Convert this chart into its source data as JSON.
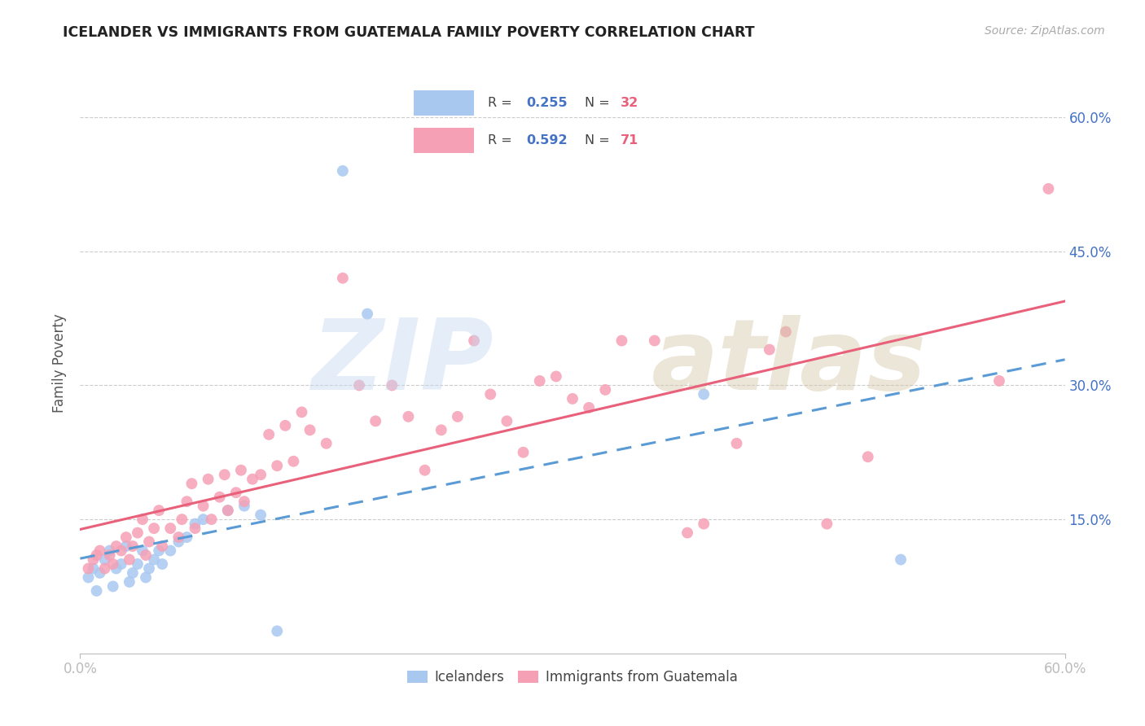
{
  "title": "ICELANDER VS IMMIGRANTS FROM GUATEMALA FAMILY POVERTY CORRELATION CHART",
  "source": "Source: ZipAtlas.com",
  "ylabel": "Family Poverty",
  "xlim": [
    0.0,
    0.6
  ],
  "ylim": [
    0.0,
    0.65
  ],
  "color_blue": "#a8c8f0",
  "color_pink": "#f5a0b5",
  "color_line_blue": "#5b9bd5",
  "color_line_pink": "#e8607a",
  "color_axis_label": "#4472c4",
  "icelanders_x": [
    0.005,
    0.008,
    0.01,
    0.012,
    0.015,
    0.018,
    0.02,
    0.022,
    0.025,
    0.028,
    0.03,
    0.032,
    0.035,
    0.038,
    0.04,
    0.042,
    0.045,
    0.048,
    0.05,
    0.055,
    0.06,
    0.065,
    0.07,
    0.075,
    0.09,
    0.1,
    0.11,
    0.12,
    0.16,
    0.175,
    0.38,
    0.5
  ],
  "icelanders_y": [
    0.085,
    0.095,
    0.07,
    0.09,
    0.105,
    0.115,
    0.075,
    0.095,
    0.1,
    0.12,
    0.08,
    0.09,
    0.1,
    0.115,
    0.085,
    0.095,
    0.105,
    0.115,
    0.1,
    0.115,
    0.125,
    0.13,
    0.145,
    0.15,
    0.16,
    0.165,
    0.155,
    0.025,
    0.54,
    0.38,
    0.29,
    0.105
  ],
  "guatemala_x": [
    0.005,
    0.008,
    0.01,
    0.012,
    0.015,
    0.018,
    0.02,
    0.022,
    0.025,
    0.028,
    0.03,
    0.032,
    0.035,
    0.038,
    0.04,
    0.042,
    0.045,
    0.048,
    0.05,
    0.055,
    0.06,
    0.062,
    0.065,
    0.068,
    0.07,
    0.075,
    0.078,
    0.08,
    0.085,
    0.088,
    0.09,
    0.095,
    0.098,
    0.1,
    0.105,
    0.11,
    0.115,
    0.12,
    0.125,
    0.13,
    0.135,
    0.14,
    0.15,
    0.16,
    0.17,
    0.18,
    0.19,
    0.2,
    0.21,
    0.22,
    0.23,
    0.24,
    0.25,
    0.26,
    0.27,
    0.28,
    0.29,
    0.3,
    0.31,
    0.32,
    0.33,
    0.35,
    0.37,
    0.38,
    0.4,
    0.42,
    0.43,
    0.455,
    0.48,
    0.56,
    0.59
  ],
  "guatemala_y": [
    0.095,
    0.105,
    0.11,
    0.115,
    0.095,
    0.11,
    0.1,
    0.12,
    0.115,
    0.13,
    0.105,
    0.12,
    0.135,
    0.15,
    0.11,
    0.125,
    0.14,
    0.16,
    0.12,
    0.14,
    0.13,
    0.15,
    0.17,
    0.19,
    0.14,
    0.165,
    0.195,
    0.15,
    0.175,
    0.2,
    0.16,
    0.18,
    0.205,
    0.17,
    0.195,
    0.2,
    0.245,
    0.21,
    0.255,
    0.215,
    0.27,
    0.25,
    0.235,
    0.42,
    0.3,
    0.26,
    0.3,
    0.265,
    0.205,
    0.25,
    0.265,
    0.35,
    0.29,
    0.26,
    0.225,
    0.305,
    0.31,
    0.285,
    0.275,
    0.295,
    0.35,
    0.35,
    0.135,
    0.145,
    0.235,
    0.34,
    0.36,
    0.145,
    0.22,
    0.305,
    0.52
  ]
}
